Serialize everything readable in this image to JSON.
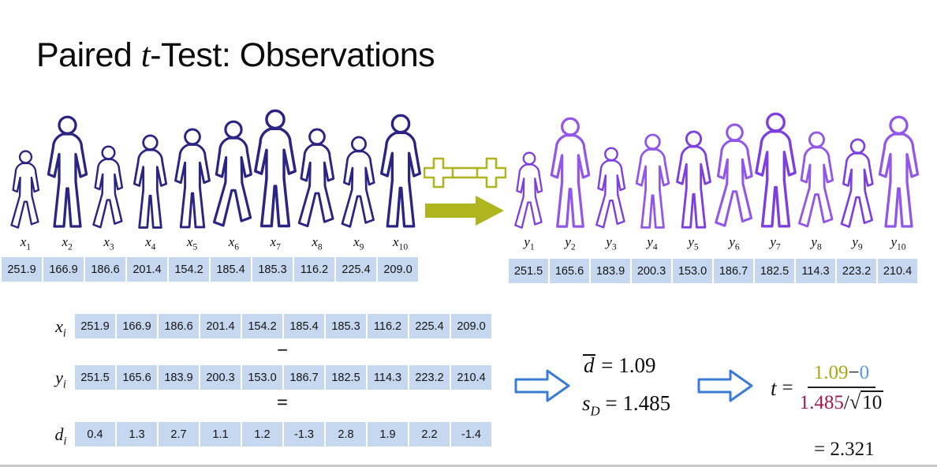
{
  "title": {
    "part1": "Paired ",
    "italic": "t",
    "part2": "-Test: Observations"
  },
  "left_group": {
    "label_base": "x",
    "indices": [
      "1",
      "2",
      "3",
      "4",
      "5",
      "6",
      "7",
      "8",
      "9",
      "10"
    ],
    "values": [
      "251.9",
      "166.9",
      "186.6",
      "201.4",
      "154.2",
      "185.4",
      "185.3",
      "116.2",
      "225.4",
      "209.0"
    ]
  },
  "right_group": {
    "label_base": "y",
    "indices": [
      "1",
      "2",
      "3",
      "4",
      "5",
      "6",
      "7",
      "8",
      "9",
      "10"
    ],
    "values": [
      "251.5",
      "165.6",
      "183.9",
      "200.3",
      "153.0",
      "186.7",
      "182.5",
      "114.3",
      "223.2",
      "210.4"
    ]
  },
  "difference_table": {
    "operator_minus": "−",
    "operator_equals": "=",
    "rows": [
      {
        "label_base": "x",
        "label_sub": "i",
        "values": [
          "251.9",
          "166.9",
          "186.6",
          "201.4",
          "154.2",
          "185.4",
          "185.3",
          "116.2",
          "225.4",
          "209.0"
        ]
      },
      {
        "label_base": "y",
        "label_sub": "i",
        "values": [
          "251.5",
          "165.6",
          "183.9",
          "200.3",
          "153.0",
          "186.7",
          "182.5",
          "114.3",
          "223.2",
          "210.4"
        ]
      },
      {
        "label_base": "d",
        "label_sub": "i",
        "values": [
          "0.4",
          "1.3",
          "2.7",
          "1.1",
          "1.2",
          "-1.3",
          "2.8",
          "1.9",
          "2.2",
          "-1.4"
        ]
      }
    ]
  },
  "stats": {
    "dbar_symbol": "d",
    "equals": "=",
    "dbar_value": "1.09",
    "sd_base": "s",
    "sd_sub": "D",
    "sd_value": "1.485"
  },
  "formula": {
    "t": "t",
    "equals": "=",
    "num_left": "1.09",
    "num_minus": "−",
    "num_right": "0",
    "den_value": "1.485",
    "den_slash": "/",
    "sqrt_symbol": "√",
    "sqrt_radicand": "10",
    "result_equals": "=",
    "result": "2.321"
  },
  "icons": {
    "dumbbell": "dumbbell-icon",
    "transform_arrow": "right-arrow-icon",
    "flow_arrow": "block-right-arrow-icon"
  },
  "colors": {
    "cell_bg": "#c6d7f0",
    "left_figure": "#2b2483",
    "right_figure": "#7e3fe0",
    "right_figure_alt": "#9257ea",
    "olive": "#aeb51f",
    "arrow_blue": "#3a7bd5",
    "formula_olive": "#a8a816",
    "formula_blue": "#5b9bd5",
    "formula_maroon": "#9e1b50"
  }
}
